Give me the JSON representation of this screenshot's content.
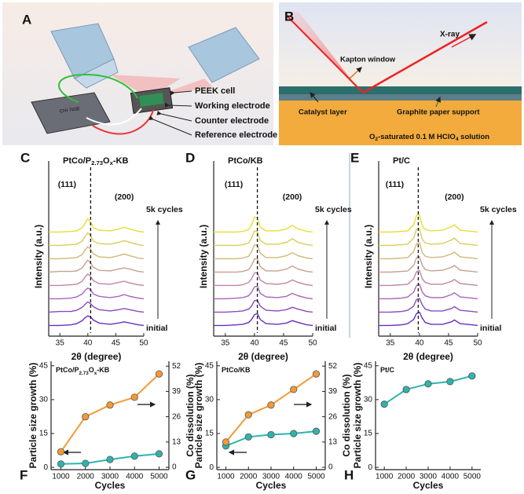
{
  "diagrams": {
    "a": {
      "panel": "A",
      "instrument": "CHI 760E",
      "labels": [
        "PEEK cell",
        "Working electrode",
        "Counter electrode",
        "Reference electrode"
      ]
    },
    "b": {
      "panel": "B",
      "beam": "X-ray",
      "window": "Kapton window",
      "catalyst": "Catalyst layer",
      "support": "Graphite paper support",
      "caption_parts": [
        "O",
        "2",
        "-saturated 0.1 M HClO",
        "4",
        " solution"
      ]
    }
  },
  "chart_data": [
    {
      "type": "waterfall",
      "panel": "C",
      "title_parts": [
        "PtCo/P",
        "2.73",
        "O",
        "x",
        "-KB"
      ],
      "xlabel": "2θ (degree)",
      "ylabel": "Intensity (a.u.)",
      "xlim": [
        33,
        50
      ],
      "xticks": [
        35,
        40,
        45,
        50
      ],
      "ylim": [
        0,
        16
      ],
      "ref_x": 40.5,
      "peak_labels": [
        "(111)",
        "(200)"
      ],
      "top_label": "5k cycles",
      "bottom_label": "initial",
      "x": [
        33,
        35,
        37,
        38,
        39,
        39.5,
        40,
        40.5,
        41,
        42,
        44,
        45.5,
        46.5,
        47.5,
        49,
        50
      ],
      "series": [
        {
          "color": "#6a2fc0",
          "values": [
            1.0,
            1.0,
            1.1,
            1.3,
            1.8,
            2.3,
            2.6,
            2.4,
            1.9,
            1.4,
            1.2,
            1.4,
            1.6,
            1.4,
            1.1,
            1.0
          ]
        },
        {
          "color": "#8a4bc0",
          "values": [
            1.0,
            1.1,
            1.1,
            1.3,
            1.8,
            2.3,
            2.7,
            2.4,
            1.9,
            1.4,
            1.2,
            1.4,
            1.6,
            1.4,
            1.1,
            1.0
          ]
        },
        {
          "color": "#a866b8",
          "values": [
            1.0,
            1.0,
            1.1,
            1.3,
            1.8,
            2.4,
            2.8,
            2.5,
            1.8,
            1.4,
            1.2,
            1.4,
            1.7,
            1.4,
            1.1,
            1.0
          ]
        },
        {
          "color": "#bf85a8",
          "values": [
            1.0,
            1.0,
            1.1,
            1.2,
            1.7,
            2.4,
            2.9,
            2.5,
            1.8,
            1.3,
            1.2,
            1.5,
            1.7,
            1.4,
            1.1,
            1.0
          ]
        },
        {
          "color": "#c9a08f",
          "values": [
            1.0,
            1.1,
            1.1,
            1.2,
            1.7,
            2.4,
            3.0,
            2.5,
            1.8,
            1.3,
            1.2,
            1.5,
            1.7,
            1.5,
            1.1,
            1.0
          ]
        },
        {
          "color": "#d0b878",
          "values": [
            1.0,
            1.0,
            1.1,
            1.2,
            1.7,
            2.5,
            3.0,
            2.6,
            1.8,
            1.3,
            1.2,
            1.5,
            1.8,
            1.5,
            1.1,
            1.0
          ]
        },
        {
          "color": "#d9cd5a",
          "values": [
            1.0,
            1.0,
            1.1,
            1.2,
            1.7,
            2.5,
            3.1,
            2.6,
            1.7,
            1.3,
            1.2,
            1.5,
            1.8,
            1.5,
            1.1,
            1.0
          ]
        },
        {
          "color": "#e6df2e",
          "values": [
            1.0,
            1.0,
            1.1,
            1.2,
            1.7,
            2.5,
            3.2,
            2.6,
            1.7,
            1.3,
            1.2,
            1.5,
            1.8,
            1.5,
            1.1,
            1.0
          ]
        }
      ]
    },
    {
      "type": "waterfall",
      "panel": "D",
      "title_parts": [
        "PtCo/KB"
      ],
      "xlabel": "2θ (degree)",
      "ylabel": "Intensity (a.u.)",
      "xlim": [
        33,
        50
      ],
      "xticks": [
        35,
        40,
        45,
        50
      ],
      "ylim": [
        0,
        16
      ],
      "ref_x": 40.5,
      "peak_labels": [
        "(111)",
        "(200)"
      ],
      "top_label": "5k cycles",
      "bottom_label": "initial",
      "x": [
        33,
        35,
        37,
        38,
        39,
        39.5,
        40,
        40.5,
        41,
        42,
        44,
        45.5,
        46.5,
        47.5,
        49,
        50
      ],
      "series": [
        {
          "color": "#6a2fc0",
          "values": [
            1.0,
            1.0,
            1.1,
            1.2,
            1.5,
            2.0,
            2.8,
            3.0,
            2.0,
            1.3,
            1.2,
            1.4,
            1.8,
            1.5,
            1.1,
            1.0
          ]
        },
        {
          "color": "#8a4bc0",
          "values": [
            1.0,
            1.0,
            1.1,
            1.2,
            1.5,
            2.0,
            2.9,
            3.0,
            2.0,
            1.3,
            1.2,
            1.4,
            1.8,
            1.5,
            1.1,
            1.0
          ]
        },
        {
          "color": "#a866b8",
          "values": [
            1.0,
            1.0,
            1.1,
            1.2,
            1.5,
            2.1,
            3.0,
            3.1,
            1.9,
            1.3,
            1.2,
            1.4,
            1.9,
            1.5,
            1.1,
            1.0
          ]
        },
        {
          "color": "#bf85a8",
          "values": [
            1.0,
            1.0,
            1.0,
            1.1,
            1.5,
            2.1,
            3.1,
            3.1,
            1.9,
            1.3,
            1.2,
            1.4,
            1.9,
            1.5,
            1.1,
            1.0
          ]
        },
        {
          "color": "#c9a08f",
          "values": [
            1.0,
            1.0,
            1.0,
            1.1,
            1.4,
            2.1,
            3.2,
            3.2,
            1.9,
            1.2,
            1.2,
            1.5,
            2.0,
            1.5,
            1.1,
            1.0
          ]
        },
        {
          "color": "#d0b878",
          "values": [
            1.0,
            1.0,
            1.0,
            1.1,
            1.4,
            2.2,
            3.3,
            3.3,
            1.9,
            1.2,
            1.2,
            1.5,
            2.0,
            1.5,
            1.1,
            1.0
          ]
        },
        {
          "color": "#d9cd5a",
          "values": [
            1.0,
            1.0,
            1.0,
            1.1,
            1.4,
            2.2,
            3.4,
            3.3,
            1.8,
            1.2,
            1.2,
            1.5,
            2.1,
            1.5,
            1.1,
            1.0
          ]
        },
        {
          "color": "#e6df2e",
          "values": [
            1.0,
            1.0,
            1.0,
            1.1,
            1.4,
            2.2,
            3.5,
            3.4,
            1.8,
            1.2,
            1.2,
            1.5,
            2.1,
            1.5,
            1.1,
            1.0
          ]
        }
      ]
    },
    {
      "type": "waterfall",
      "panel": "E",
      "title_parts": [
        "Pt/C"
      ],
      "xlabel": "2θ (degree)",
      "ylabel": "Intensity (a.u.)",
      "xlim": [
        33,
        50
      ],
      "xticks": [
        35,
        40,
        45,
        50
      ],
      "ylim": [
        0,
        16
      ],
      "ref_x": 39.8,
      "peak_labels": [
        "(111)",
        "(200)"
      ],
      "top_label": "5k cycles",
      "bottom_label": "initial",
      "x": [
        33,
        35,
        37,
        38,
        39,
        39.5,
        40,
        40.5,
        41,
        42,
        44,
        45.5,
        46,
        47,
        49,
        50
      ],
      "series": [
        {
          "color": "#6a2fc0",
          "values": [
            1.0,
            1.0,
            1.1,
            1.3,
            2.0,
            3.0,
            3.2,
            2.2,
            1.5,
            1.2,
            1.2,
            1.6,
            1.9,
            1.3,
            1.1,
            1.0
          ]
        },
        {
          "color": "#8a4bc0",
          "values": [
            1.0,
            1.0,
            1.1,
            1.3,
            2.0,
            3.1,
            3.3,
            2.2,
            1.5,
            1.2,
            1.2,
            1.6,
            1.9,
            1.3,
            1.1,
            1.0
          ]
        },
        {
          "color": "#a866b8",
          "values": [
            1.0,
            1.0,
            1.1,
            1.3,
            2.1,
            3.2,
            3.4,
            2.1,
            1.5,
            1.2,
            1.2,
            1.7,
            2.0,
            1.3,
            1.1,
            1.0
          ]
        },
        {
          "color": "#bf85a8",
          "values": [
            1.0,
            1.0,
            1.1,
            1.2,
            2.1,
            3.3,
            3.5,
            2.1,
            1.5,
            1.2,
            1.2,
            1.7,
            2.0,
            1.3,
            1.1,
            1.0
          ]
        },
        {
          "color": "#c9a08f",
          "values": [
            1.0,
            1.0,
            1.1,
            1.2,
            2.1,
            3.4,
            3.6,
            2.1,
            1.4,
            1.2,
            1.3,
            1.8,
            2.1,
            1.3,
            1.1,
            1.0
          ]
        },
        {
          "color": "#d0b878",
          "values": [
            1.0,
            1.0,
            1.1,
            1.2,
            2.2,
            3.5,
            3.7,
            2.0,
            1.4,
            1.2,
            1.3,
            1.8,
            2.1,
            1.3,
            1.1,
            1.0
          ]
        },
        {
          "color": "#d9cd5a",
          "values": [
            1.0,
            1.0,
            1.1,
            1.2,
            2.2,
            3.7,
            3.8,
            2.0,
            1.4,
            1.2,
            1.3,
            1.9,
            2.2,
            1.3,
            1.1,
            1.0
          ]
        },
        {
          "color": "#e6df2e",
          "values": [
            1.0,
            1.0,
            1.1,
            1.2,
            2.2,
            3.8,
            3.9,
            2.0,
            1.4,
            1.2,
            1.3,
            1.9,
            2.2,
            1.3,
            1.1,
            1.0
          ]
        }
      ]
    },
    {
      "type": "line",
      "panel": "F",
      "title_parts": [
        "PtCo/P",
        "2.73",
        "O",
        "x",
        "-KB"
      ],
      "xlabel": "Cycles",
      "ylabel": "Particle size growth (%)",
      "y2label": "Co dissolution (%)",
      "x": [
        1000,
        2000,
        3000,
        4000,
        5000
      ],
      "xlim": [
        600,
        5400
      ],
      "xticks": [
        1000,
        2000,
        3000,
        4000,
        5000
      ],
      "ylim": [
        -1,
        47
      ],
      "yticks": [
        0,
        15,
        30,
        45
      ],
      "y2lim": [
        -1.2,
        54.5
      ],
      "y2ticks": [
        0,
        13,
        26,
        39,
        52
      ],
      "series": [
        {
          "color": "#2fb3ad",
          "values": [
            1.5,
            1.8,
            3.5,
            5,
            6
          ]
        },
        {
          "color": "#f39a36",
          "axis": "y2",
          "values": [
            8,
            26,
            32,
            36,
            48
          ]
        }
      ]
    },
    {
      "type": "line",
      "panel": "G",
      "title_parts": [
        "PtCo/KB"
      ],
      "xlabel": "Cycles",
      "ylabel": "Particle size growth (%)",
      "y2label": "Co dissolution (%)",
      "x": [
        1000,
        2000,
        3000,
        4000,
        5000
      ],
      "xlim": [
        600,
        5400
      ],
      "xticks": [
        1000,
        2000,
        3000,
        4000,
        5000
      ],
      "ylim": [
        -1,
        47
      ],
      "yticks": [
        0,
        15,
        30,
        45
      ],
      "y2lim": [
        -1.2,
        54.5
      ],
      "y2ticks": [
        0,
        13,
        26,
        39,
        52
      ],
      "series": [
        {
          "color": "#2fb3ad",
          "values": [
            9.5,
            13.5,
            14.5,
            15,
            16
          ]
        },
        {
          "color": "#f39a36",
          "axis": "y2",
          "values": [
            13,
            27,
            32,
            40,
            48
          ]
        }
      ]
    },
    {
      "type": "line",
      "panel": "H",
      "title_parts": [
        "Pt/C"
      ],
      "xlabel": "Cycles",
      "ylabel": "Particle size growth (%)",
      "x": [
        1000,
        2000,
        3000,
        4000,
        5000
      ],
      "xlim": [
        600,
        5400
      ],
      "xticks": [
        1000,
        2000,
        3000,
        4000,
        5000
      ],
      "ylim": [
        -1,
        47
      ],
      "yticks": [
        0,
        15,
        30,
        45
      ],
      "series": [
        {
          "color": "#2fb3ad",
          "values": [
            28,
            34.5,
            37,
            38,
            40.5
          ]
        }
      ]
    }
  ]
}
